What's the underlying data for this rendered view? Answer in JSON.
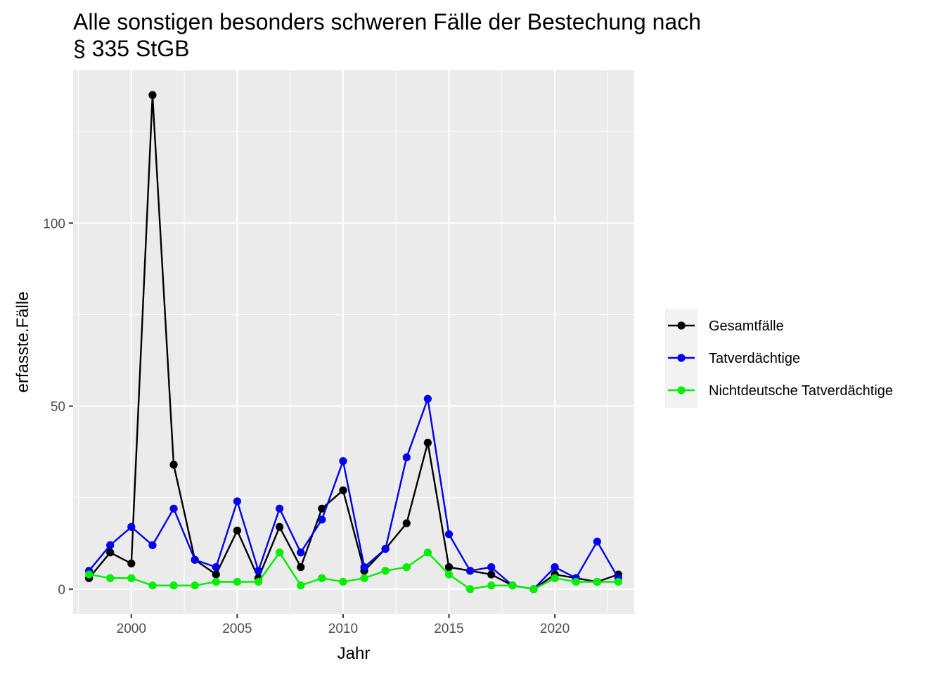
{
  "chart_data": {
    "type": "line",
    "title": [
      "Alle sonstigen besonders schweren Fälle der Bestechung nach",
      "§ 335 StGB"
    ],
    "xlabel": "Jahr",
    "ylabel": "erfasste.Fälle",
    "x": [
      1998,
      1999,
      2000,
      2001,
      2002,
      2003,
      2004,
      2005,
      2006,
      2007,
      2008,
      2009,
      2010,
      2011,
      2012,
      2013,
      2014,
      2015,
      2016,
      2017,
      2018,
      2019,
      2020,
      2021,
      2022,
      2023
    ],
    "xlim": [
      1997.25,
      2023.75
    ],
    "ylim": [
      -6.75,
      141.75
    ],
    "x_ticks": [
      2000,
      2005,
      2010,
      2015,
      2020
    ],
    "y_ticks": [
      0,
      50,
      100
    ],
    "grid": true,
    "legend_position": "right",
    "series": [
      {
        "name": "Gesamtfälle",
        "color": "#000000",
        "values": [
          3,
          10,
          7,
          135,
          34,
          8,
          4,
          16,
          3,
          17,
          6,
          22,
          27,
          5,
          11,
          18,
          40,
          6,
          5,
          4,
          1,
          0,
          4,
          3,
          2,
          4
        ]
      },
      {
        "name": "Tatverdächtige",
        "color": "#0000ee",
        "values": [
          5,
          12,
          17,
          12,
          22,
          8,
          6,
          24,
          5,
          22,
          10,
          19,
          35,
          6,
          11,
          36,
          52,
          15,
          5,
          6,
          1,
          0,
          6,
          3,
          13,
          3
        ]
      },
      {
        "name": "Nichtdeutsche Tatverdächtige",
        "color": "#00ee00",
        "values": [
          4,
          3,
          3,
          1,
          1,
          1,
          2,
          2,
          2,
          10,
          1,
          3,
          2,
          3,
          5,
          6,
          10,
          4,
          0,
          1,
          1,
          0,
          3,
          2,
          2,
          2
        ]
      }
    ]
  }
}
